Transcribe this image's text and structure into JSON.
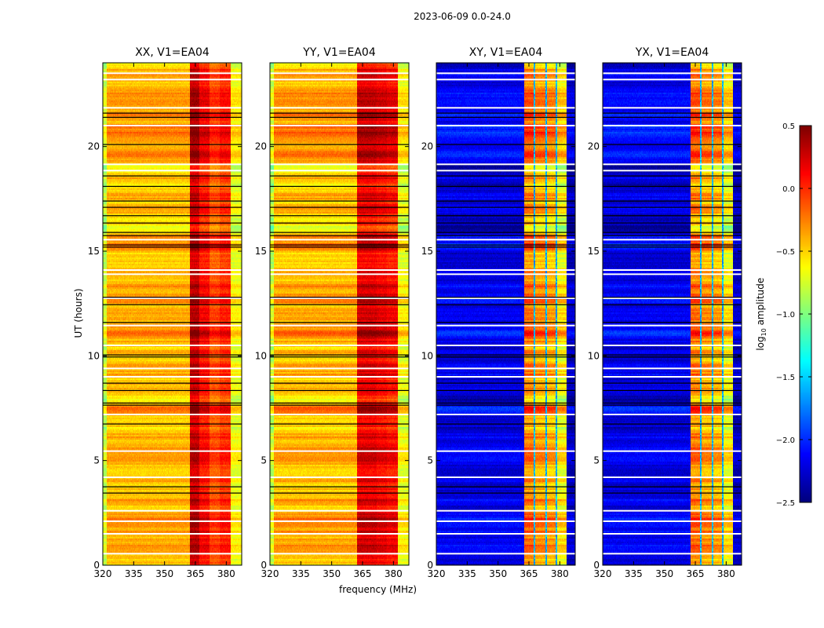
{
  "chart_data": {
    "type": "heatmap",
    "title": "2023-06-09 0.0-24.0",
    "xlabel": "frequency (MHz)",
    "ylabel": "UT (hours)",
    "xlim": [
      320,
      387.5
    ],
    "ylim": [
      0,
      24
    ],
    "xticks": [
      320,
      335,
      350,
      365,
      380
    ],
    "yticks": [
      0,
      5,
      10,
      15,
      20
    ],
    "colorbar": {
      "label": "log10 amplitude",
      "colormap": "jet",
      "range": [
        -2.5,
        0.5
      ],
      "ticks": [
        0.5,
        0.0,
        -0.5,
        -1.0,
        -1.5,
        -2.0,
        -2.5
      ],
      "tick_labels": [
        "0.5",
        "0.0",
        "−0.5",
        "−1.0",
        "−1.5",
        "−2.0",
        "−2.5"
      ]
    },
    "flagged_hours_black": [
      21.4,
      21.6,
      20.1,
      18.6,
      18.1,
      17.4,
      17.1,
      16.7,
      16.35,
      15.9,
      15.75,
      15.3,
      15.2,
      12.8,
      12.45,
      11.6,
      10.05,
      9.95,
      8.7,
      8.35,
      7.75,
      7.65,
      6.75,
      3.75,
      3.45
    ],
    "flagged_hours_blank": [
      23.5,
      23.2,
      21.85,
      21.0,
      19.15,
      18.85,
      15.55,
      14.1,
      13.9,
      12.75,
      11.45,
      10.5,
      9.4,
      9.0,
      7.2,
      5.45,
      4.2,
      2.6,
      2.1,
      1.5,
      0.55
    ],
    "panels": [
      {
        "title": "XX, V1=EA04",
        "bands": [
          {
            "from": 320,
            "to": 322,
            "level": -0.8
          },
          {
            "from": 322,
            "to": 362.5,
            "level": -0.42
          },
          {
            "from": 362.5,
            "to": 367,
            "level": 0.3
          },
          {
            "from": 367,
            "to": 372,
            "level": 0.1
          },
          {
            "from": 372,
            "to": 377,
            "level": -0.1
          },
          {
            "from": 377,
            "to": 382,
            "level": 0.0
          },
          {
            "from": 382,
            "to": 387.5,
            "level": -0.65
          }
        ],
        "dividers": [],
        "band_variation": 0.25
      },
      {
        "title": "YY, V1=EA04",
        "bands": [
          {
            "from": 320,
            "to": 322,
            "level": -0.8
          },
          {
            "from": 322,
            "to": 362.5,
            "level": -0.42
          },
          {
            "from": 362.5,
            "to": 367,
            "level": 0.2
          },
          {
            "from": 367,
            "to": 372,
            "level": 0.2
          },
          {
            "from": 372,
            "to": 377,
            "level": 0.15
          },
          {
            "from": 377,
            "to": 382,
            "level": 0.1
          },
          {
            "from": 382,
            "to": 387.5,
            "level": -0.65
          }
        ],
        "dividers": [],
        "band_variation": 0.3
      },
      {
        "title": "XY, V1=EA04",
        "bands": [
          {
            "from": 320,
            "to": 362.7,
            "level": -2.2
          },
          {
            "from": 362.7,
            "to": 368,
            "level": -0.25
          },
          {
            "from": 368,
            "to": 373.5,
            "level": -0.35
          },
          {
            "from": 373.5,
            "to": 378.5,
            "level": -0.4
          },
          {
            "from": 378.5,
            "to": 383.4,
            "level": -0.6
          },
          {
            "from": 383.4,
            "to": 387.5,
            "level": -2.3
          }
        ],
        "dividers": [
          367.7,
          373.4,
          378.3
        ],
        "band_variation": 0.4
      },
      {
        "title": "YX, V1=EA04",
        "bands": [
          {
            "from": 320,
            "to": 362.7,
            "level": -2.2
          },
          {
            "from": 362.7,
            "to": 368,
            "level": -0.25
          },
          {
            "from": 368,
            "to": 373.5,
            "level": -0.35
          },
          {
            "from": 373.5,
            "to": 378.5,
            "level": -0.4
          },
          {
            "from": 378.5,
            "to": 383.4,
            "level": -0.6
          },
          {
            "from": 383.4,
            "to": 387.5,
            "level": -2.3
          }
        ],
        "dividers": [
          367.7,
          373.4,
          378.3
        ],
        "band_variation": 0.4
      }
    ]
  }
}
